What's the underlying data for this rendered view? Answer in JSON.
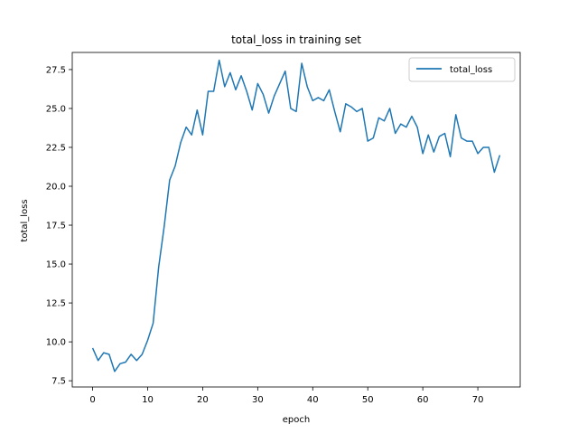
{
  "chart_data": {
    "type": "line",
    "title": "total_loss in training set",
    "xlabel": "epoch",
    "ylabel": "total_loss",
    "xlim": [
      -3.7,
      77.7
    ],
    "ylim": [
      7.1,
      28.6
    ],
    "xticks": [
      0,
      10,
      20,
      30,
      40,
      50,
      60,
      70
    ],
    "yticks": [
      7.5,
      10.0,
      12.5,
      15.0,
      17.5,
      20.0,
      22.5,
      25.0,
      27.5
    ],
    "ytick_labels": [
      "7.5",
      "10.0",
      "12.5",
      "15.0",
      "17.5",
      "20.0",
      "22.5",
      "25.0",
      "27.5"
    ],
    "legend_position": "top-right",
    "grid": false,
    "series": [
      {
        "name": "total_loss",
        "color": "#1f77b4",
        "x": [
          0,
          1,
          2,
          3,
          4,
          5,
          6,
          7,
          8,
          9,
          10,
          11,
          12,
          13,
          14,
          15,
          16,
          17,
          18,
          19,
          20,
          21,
          22,
          23,
          24,
          25,
          26,
          27,
          28,
          29,
          30,
          31,
          32,
          33,
          34,
          35,
          36,
          37,
          38,
          39,
          40,
          41,
          42,
          43,
          44,
          45,
          46,
          47,
          48,
          49,
          50,
          51,
          52,
          53,
          54,
          55,
          56,
          57,
          58,
          59,
          60,
          61,
          62,
          63,
          64,
          65,
          66,
          67,
          68,
          69,
          70,
          71,
          72,
          73,
          74
        ],
        "y": [
          9.6,
          8.8,
          9.3,
          9.2,
          8.1,
          8.6,
          8.7,
          9.2,
          8.8,
          9.2,
          10.1,
          11.2,
          14.8,
          17.4,
          20.4,
          21.3,
          22.8,
          23.8,
          23.3,
          24.9,
          23.3,
          26.1,
          26.1,
          28.1,
          26.4,
          27.3,
          26.2,
          27.1,
          26.1,
          24.9,
          26.6,
          25.9,
          24.7,
          25.8,
          26.6,
          27.4,
          25.0,
          24.8,
          27.9,
          26.4,
          25.5,
          25.7,
          25.5,
          26.2,
          24.8,
          23.5,
          25.3,
          25.1,
          24.8,
          25.0,
          22.9,
          23.1,
          24.4,
          24.2,
          25.0,
          23.4,
          24.0,
          23.8,
          24.5,
          23.8,
          22.1,
          23.3,
          22.2,
          23.2,
          23.4,
          21.9,
          24.6,
          23.1,
          22.9,
          22.9,
          22.1,
          22.5,
          22.5,
          20.9,
          22.0
        ]
      }
    ]
  }
}
